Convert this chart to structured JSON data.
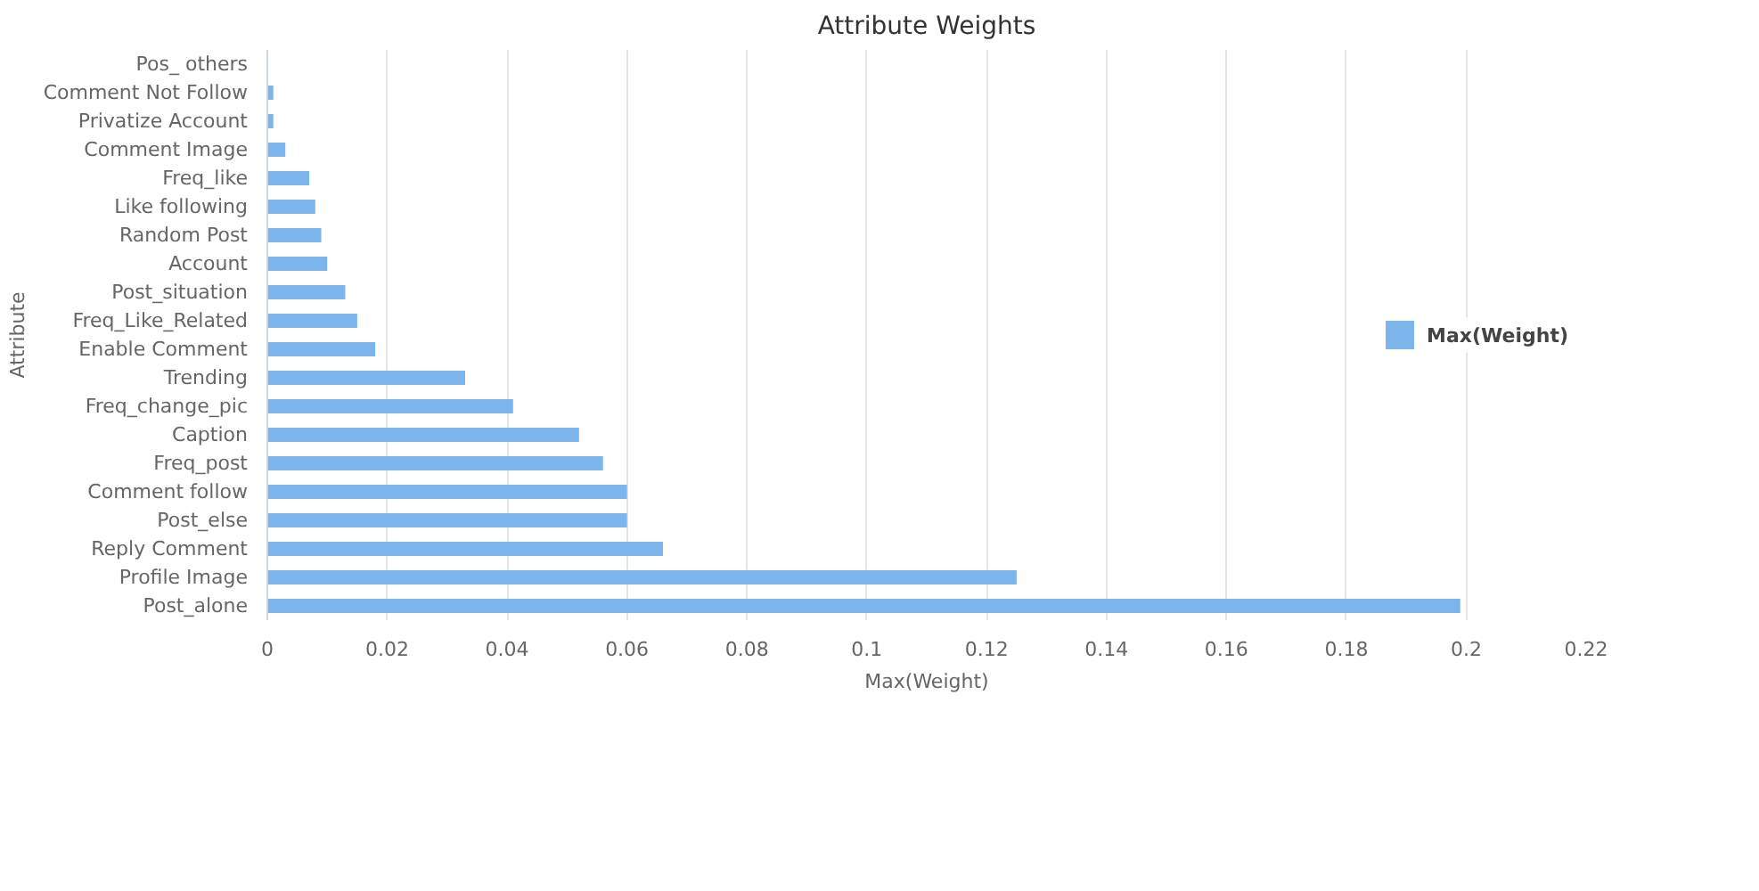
{
  "chart_data": {
    "type": "bar",
    "orientation": "horizontal",
    "title": "Attribute Weights",
    "xlabel": "Max(Weight)",
    "ylabel": "Attribute",
    "categories": [
      "Pos_ others",
      "Comment Not Follow",
      "Privatize Account",
      "Comment Image",
      "Freq_like",
      "Like following",
      "Random Post",
      "Account",
      "Post_situation",
      "Freq_Like_Related",
      "Enable Comment",
      "Trending",
      "Freq_change_pic",
      "Caption",
      "Freq_post",
      "Comment follow",
      "Post_else",
      "Reply Comment",
      "Profile Image",
      "Post_alone"
    ],
    "series": [
      {
        "name": "Max(Weight)",
        "color": "#7cb5ec",
        "values": [
          0,
          0.001,
          0.001,
          0.003,
          0.007,
          0.008,
          0.009,
          0.01,
          0.013,
          0.015,
          0.018,
          0.033,
          0.041,
          0.052,
          0.056,
          0.06,
          0.06,
          0.066,
          0.125,
          0.199
        ]
      }
    ],
    "xlim": [
      0,
      0.22
    ],
    "xticks": [
      0,
      0.02,
      0.04,
      0.06,
      0.08,
      0.1,
      0.12,
      0.14,
      0.16,
      0.18,
      0.2,
      0.22
    ],
    "grid": "x",
    "legend": "right"
  }
}
